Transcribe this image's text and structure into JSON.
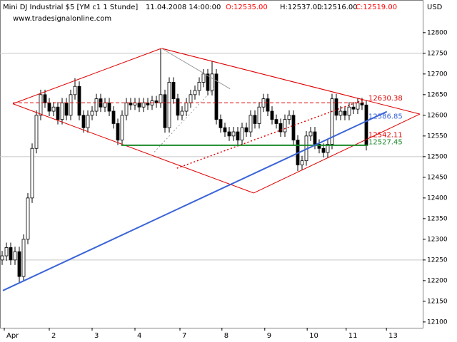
{
  "chart_data": {
    "type": "candlestick",
    "header": {
      "instrument": "Mini DJ Industrial $5 [YM c1  1 Stunde]",
      "datetime": "11.04.2008 14:00:00",
      "open": "O:12535.00",
      "high": "H:12537.00",
      "low": "L:12516.00",
      "close": "C:12519.00",
      "open_color": "#ff0000",
      "close_color": "#ff0000"
    },
    "watermark": "www.tradesignalonline.com",
    "currency": "USD",
    "xlim": [
      -0.5,
      98.17
    ],
    "ylim": [
      12086,
      12879
    ],
    "xticks": [
      {
        "value": 0.5,
        "label": "Apr"
      },
      {
        "value": 11,
        "label": "2"
      },
      {
        "value": 21,
        "label": "3"
      },
      {
        "value": 31,
        "label": "4"
      },
      {
        "value": 41.5,
        "label": "7"
      },
      {
        "value": 51.3,
        "label": "8"
      },
      {
        "value": 61.3,
        "label": "9"
      },
      {
        "value": 71.2,
        "label": "10"
      },
      {
        "value": 80.3,
        "label": "11"
      },
      {
        "value": 89.7,
        "label": "13"
      }
    ],
    "yticks": [
      12100,
      12150,
      12200,
      12250,
      12300,
      12350,
      12400,
      12450,
      12500,
      12550,
      12600,
      12650,
      12700,
      12750,
      12800
    ],
    "ygrid": [
      12250,
      12500,
      12750
    ],
    "up_color": "#ffffff",
    "down_color": "#000000",
    "wick_color": "#000000",
    "series": [
      {
        "name": "YM c1",
        "open": [
          12250,
          12260,
          12280,
          12250,
          12270,
          12210,
          12300,
          12400,
          12520,
          12600,
          12650,
          12630,
          12610,
          12620,
          12590,
          12630,
          12600,
          12650,
          12670,
          12600,
          12570,
          12600,
          12610,
          12640,
          12620,
          12630,
          12610,
          12580,
          12540,
          12600,
          12630,
          12625,
          12630,
          12620,
          12630,
          12625,
          12635,
          12630,
          12650,
          12570,
          12680,
          12640,
          12600,
          12610,
          12630,
          12650,
          12660,
          12680,
          12700,
          12660,
          12700,
          12590,
          12570,
          12560,
          12550,
          12560,
          12540,
          12570,
          12560,
          12600,
          12580,
          12620,
          12640,
          12610,
          12590,
          12580,
          12560,
          12590,
          12600,
          12540,
          12480,
          12490,
          12550,
          12560,
          12530,
          12520,
          12510,
          12530,
          12640,
          12600,
          12610,
          12600,
          12620,
          12615,
          12630,
          12625
        ],
        "high": [
          12272,
          12292,
          12292,
          12282,
          12282,
          12312,
          12412,
          12532,
          12612,
          12662,
          12662,
          12642,
          12632,
          12632,
          12642,
          12642,
          12662,
          12690,
          12682,
          12612,
          12612,
          12622,
          12652,
          12652,
          12642,
          12642,
          12622,
          12592,
          12612,
          12642,
          12642,
          12642,
          12642,
          12642,
          12642,
          12647,
          12647,
          12760,
          12662,
          12692,
          12692,
          12652,
          12622,
          12642,
          12662,
          12672,
          12692,
          12712,
          12712,
          12730,
          12712,
          12602,
          12582,
          12572,
          12572,
          12572,
          12582,
          12582,
          12612,
          12612,
          12632,
          12652,
          12652,
          12622,
          12602,
          12592,
          12602,
          12612,
          12612,
          12552,
          12502,
          12562,
          12572,
          12572,
          12542,
          12532,
          12542,
          12652,
          12652,
          12622,
          12622,
          12632,
          12632,
          12642,
          12642,
          12637
        ],
        "low": [
          12238,
          12248,
          12238,
          12238,
          12195,
          12198,
          12288,
          12388,
          12508,
          12588,
          12618,
          12598,
          12598,
          12578,
          12578,
          12588,
          12588,
          12638,
          12588,
          12558,
          12558,
          12588,
          12598,
          12608,
          12608,
          12598,
          12568,
          12528,
          12528,
          12588,
          12613,
          12613,
          12608,
          12608,
          12613,
          12613,
          12618,
          12618,
          12558,
          12558,
          12628,
          12588,
          12588,
          12598,
          12618,
          12638,
          12648,
          12668,
          12648,
          12648,
          12578,
          12558,
          12548,
          12538,
          12538,
          12528,
          12528,
          12548,
          12548,
          12568,
          12568,
          12608,
          12598,
          12578,
          12568,
          12548,
          12548,
          12578,
          12528,
          12465,
          12468,
          12478,
          12538,
          12518,
          12508,
          12498,
          12498,
          12518,
          12588,
          12588,
          12588,
          12588,
          12603,
          12603,
          12613,
          12515
        ],
        "close": [
          12260,
          12280,
          12250,
          12270,
          12210,
          12300,
          12400,
          12520,
          12600,
          12650,
          12630,
          12610,
          12620,
          12590,
          12630,
          12600,
          12650,
          12670,
          12600,
          12570,
          12600,
          12610,
          12640,
          12620,
          12630,
          12610,
          12580,
          12540,
          12600,
          12630,
          12625,
          12630,
          12620,
          12630,
          12625,
          12635,
          12630,
          12650,
          12570,
          12680,
          12640,
          12600,
          12610,
          12630,
          12650,
          12660,
          12680,
          12700,
          12660,
          12700,
          12590,
          12570,
          12560,
          12550,
          12560,
          12540,
          12570,
          12560,
          12600,
          12580,
          12620,
          12640,
          12610,
          12590,
          12580,
          12560,
          12590,
          12600,
          12540,
          12480,
          12490,
          12550,
          12560,
          12530,
          12520,
          12510,
          12530,
          12640,
          12600,
          12610,
          12600,
          12620,
          12615,
          12630,
          12625,
          12527
        ]
      }
    ],
    "lines": [
      {
        "x": [
          2.5,
          37.2
        ],
        "y": [
          12628,
          12762
        ],
        "color": "#e00000",
        "style": "solid",
        "width": 1
      },
      {
        "x": [
          37.2,
          97.5
        ],
        "y": [
          12762,
          12603
        ],
        "color": "#e00000",
        "style": "solid",
        "width": 1
      },
      {
        "x": [
          37.2,
          84.2
        ],
        "y": [
          12762,
          12638
        ],
        "color": "#e00000",
        "style": "solid",
        "width": 1
      },
      {
        "x": [
          97.5,
          58.7
        ],
        "y": [
          12603,
          12412
        ],
        "color": "#e00000",
        "style": "solid",
        "width": 1
      },
      {
        "x": [
          58.7,
          2.5
        ],
        "y": [
          12412,
          12628
        ],
        "color": "#e00000",
        "style": "solid",
        "width": 1
      },
      {
        "x": [
          2.5,
          84.5
        ],
        "y": [
          12630.38,
          12630.38
        ],
        "color": "#e00000",
        "style": "dashed",
        "width": 1
      },
      {
        "x": [
          40.8,
          84.5
        ],
        "y": [
          12472,
          12638
        ],
        "color": "#e00000",
        "style": "dotted",
        "width": 1.5
      },
      {
        "x": [
          35.5,
          49.5
        ],
        "y": [
          12511,
          12666
        ],
        "color": "#999999",
        "style": "dotted",
        "width": 1
      },
      {
        "x": [
          37.2,
          53.2
        ],
        "y": [
          12762,
          12664
        ],
        "color": "#999999",
        "style": "solid",
        "width": 1
      },
      {
        "x": [
          27.8,
          85.3
        ],
        "y": [
          12527.45,
          12527.45
        ],
        "color": "#1a8a2a",
        "style": "solid",
        "width": 2
      },
      {
        "x": [
          0.17,
          89.8
        ],
        "y": [
          12176,
          12609
        ],
        "color": "#3a64d8",
        "style": "solid",
        "width": 2
      }
    ],
    "price_labels": [
      {
        "value": 12630.38,
        "color": "#e00000"
      },
      {
        "value": 12586.85,
        "color": "#3a64d8"
      },
      {
        "value": 12542.11,
        "color": "#e00000"
      },
      {
        "value": 12527.45,
        "color": "#1a8a2a"
      }
    ]
  }
}
